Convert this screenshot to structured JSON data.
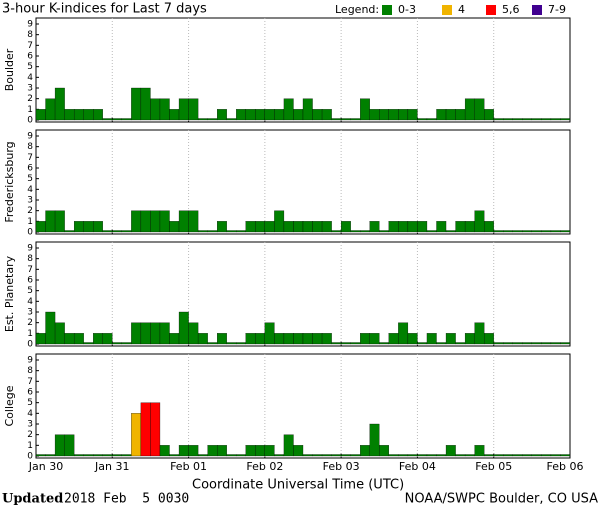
{
  "chart_data": {
    "type": "bar",
    "title": "3-hour K-indices for Last 7 days",
    "legend_title": "Legend:",
    "legend": [
      {
        "label": "0-3",
        "color": "#008000"
      },
      {
        "label": "4",
        "color": "#f0b400"
      },
      {
        "label": "5,6",
        "color": "#ff0000"
      },
      {
        "label": "7-9",
        "color": "#400090"
      }
    ],
    "xlabel": "Coordinate Universal Time (UTC)",
    "xlim": [
      0,
      56
    ],
    "xticks": [
      {
        "value": 0,
        "label": "Jan 30"
      },
      {
        "value": 8,
        "label": "Jan 31"
      },
      {
        "value": 16,
        "label": "Feb 01"
      },
      {
        "value": 24,
        "label": "Feb 02"
      },
      {
        "value": 32,
        "label": "Feb 03"
      },
      {
        "value": 40,
        "label": "Feb 04"
      },
      {
        "value": 48,
        "label": "Feb 05"
      },
      {
        "value": 56,
        "label": "Feb 06"
      }
    ],
    "ylim": [
      0,
      9
    ],
    "yticks": [
      0,
      1,
      2,
      3,
      4,
      5,
      6,
      7,
      8,
      9
    ],
    "panels": [
      {
        "name": "Boulder",
        "values": [
          1,
          2,
          3,
          1,
          1,
          1,
          1,
          0,
          0,
          0,
          3,
          3,
          2,
          2,
          1,
          2,
          2,
          0,
          0,
          1,
          0,
          1,
          1,
          1,
          1,
          1,
          2,
          1,
          2,
          1,
          1,
          0,
          0,
          0,
          2,
          1,
          1,
          1,
          1,
          1,
          0,
          0,
          1,
          1,
          1,
          2,
          2,
          1,
          0,
          0,
          0,
          0,
          0,
          0,
          0,
          0
        ]
      },
      {
        "name": "Fredericksburg",
        "values": [
          1,
          2,
          2,
          0,
          1,
          1,
          1,
          0,
          0,
          0,
          2,
          2,
          2,
          2,
          1,
          2,
          2,
          0,
          0,
          1,
          0,
          0,
          1,
          1,
          1,
          2,
          1,
          1,
          1,
          1,
          1,
          0,
          1,
          0,
          0,
          1,
          0,
          1,
          1,
          1,
          1,
          0,
          1,
          0,
          1,
          1,
          2,
          1,
          0,
          0,
          0,
          0,
          0,
          0,
          0,
          0
        ]
      },
      {
        "name": "Est. Planetary",
        "values": [
          1,
          3,
          2,
          1,
          1,
          0,
          1,
          1,
          0,
          0,
          2,
          2,
          2,
          2,
          1,
          3,
          2,
          1,
          0,
          1,
          0,
          0,
          1,
          1,
          2,
          1,
          1,
          1,
          1,
          1,
          1,
          0,
          0,
          0,
          1,
          1,
          0,
          1,
          2,
          1,
          0,
          1,
          0,
          1,
          0,
          1,
          2,
          1,
          0,
          0,
          0,
          0,
          0,
          0,
          0,
          0
        ]
      },
      {
        "name": "College",
        "values": [
          0,
          0,
          2,
          2,
          0,
          0,
          0,
          0,
          0,
          0,
          4,
          5,
          5,
          1,
          0,
          1,
          1,
          0,
          1,
          1,
          0,
          0,
          1,
          1,
          1,
          0,
          2,
          1,
          0,
          0,
          0,
          0,
          0,
          0,
          1,
          3,
          1,
          0,
          0,
          0,
          0,
          0,
          0,
          1,
          0,
          0,
          1,
          0,
          0,
          0,
          0,
          0,
          0,
          0,
          0,
          0
        ]
      }
    ]
  },
  "footer": {
    "updated_label": "Updated",
    "updated_time": "2018 Feb  5 0030",
    "source": "NOAA/SWPC Boulder, CO USA"
  }
}
